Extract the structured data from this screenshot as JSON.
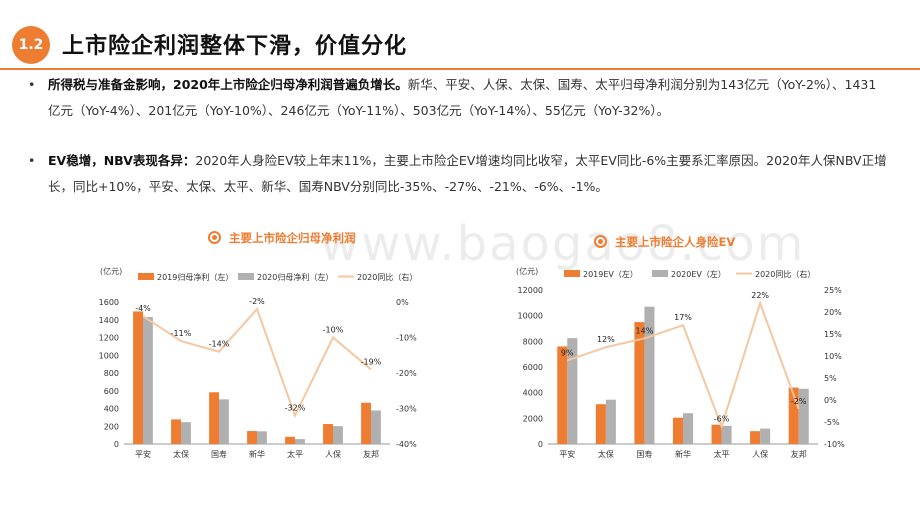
{
  "header": {
    "badge": "1.2",
    "title": "上市险企利润整体下滑，价值分化"
  },
  "bullets": [
    {
      "dot": "•",
      "bold": "所得税与准备金影响，2020年上市险企归母净利润普遍负增长。",
      "text": "新华、平安、人保、太保、国寿、太平归母净利润分别为143亿元（YoY-2%）、1431亿元（YoY-4%）、201亿元（YoY-10%）、246亿元（YoY-11%）、503亿元（YoY-14%）、55亿元（YoY-32%）。"
    },
    {
      "dot": "•",
      "bold": "EV稳增，NBV表现各异：",
      "text": "2020年人身险EV较上年末11%，主要上市险企EV增速均同比收窄，太平EV同比-6%主要系汇率原因。2020年人保NBV正增长，同比+10%，平安、太保、太平、新华、国寿NBV分别同比-35%、-27%、-21%、-6%、-1%。"
    }
  ],
  "watermark": "www.baogao8.com",
  "colors": {
    "accent": "#ee7c31",
    "bar2019": "#ee7c31",
    "bar2020": "#b0b0b0",
    "line": "#f5c7a1"
  },
  "chart_data": [
    {
      "type": "bar",
      "title": "主要上市险企归母净利润",
      "unit_label": "(亿元)",
      "categories": [
        "平安",
        "太保",
        "国寿",
        "新华",
        "太平",
        "人保",
        "友邦"
      ],
      "series": [
        {
          "name": "2019归母净利（左）",
          "kind": "bar",
          "values": [
            1494,
            277,
            583,
            146,
            81,
            225,
            465
          ]
        },
        {
          "name": "2020归母净利（左）",
          "kind": "bar",
          "values": [
            1431,
            246,
            503,
            143,
            55,
            201,
            378
          ]
        },
        {
          "name": "2020同比（右）",
          "kind": "line",
          "axis": "right",
          "values": [
            -4,
            -11,
            -14,
            -2,
            -32,
            -10,
            -19
          ],
          "labels": [
            "-4%",
            "-11%",
            "-14%",
            "-2%",
            "-32%",
            "-10%",
            "-19%"
          ]
        }
      ],
      "ylim": [
        0,
        1600
      ],
      "yticks": [
        0,
        200,
        400,
        600,
        800,
        1000,
        1200,
        1400,
        1600
      ],
      "y2lim": [
        -40,
        0
      ],
      "y2ticks": [
        "0%",
        "-10%",
        "-20%",
        "-30%",
        "-40%"
      ],
      "y2tick_values": [
        0,
        -10,
        -20,
        -30,
        -40
      ]
    },
    {
      "type": "bar",
      "title": "主要上市险企人身险EV",
      "unit_label": "(亿元)",
      "categories": [
        "平安",
        "太保",
        "国寿",
        "新华",
        "太平",
        "人保",
        "友邦"
      ],
      "series": [
        {
          "name": "2019EV（左）",
          "kind": "bar",
          "values": [
            7600,
            3100,
            9500,
            2050,
            1500,
            1000,
            4400
          ]
        },
        {
          "name": "2020EV（左）",
          "kind": "bar",
          "values": [
            8250,
            3450,
            10700,
            2400,
            1420,
            1200,
            4300
          ]
        },
        {
          "name": "2020同比（右）",
          "kind": "line",
          "axis": "right",
          "values": [
            9,
            12,
            14,
            17,
            -6,
            22,
            -2
          ],
          "labels": [
            "9%",
            "12%",
            "14%",
            "17%",
            "-6%",
            "22%",
            "-2%"
          ]
        }
      ],
      "ylim": [
        0,
        12000
      ],
      "yticks": [
        0,
        2000,
        4000,
        6000,
        8000,
        10000,
        12000
      ],
      "y2lim": [
        -10,
        25
      ],
      "y2ticks": [
        "25%",
        "20%",
        "15%",
        "10%",
        "5%",
        "0%",
        "-5%",
        "-10%"
      ],
      "y2tick_values": [
        25,
        20,
        15,
        10,
        5,
        0,
        -5,
        -10
      ]
    }
  ]
}
